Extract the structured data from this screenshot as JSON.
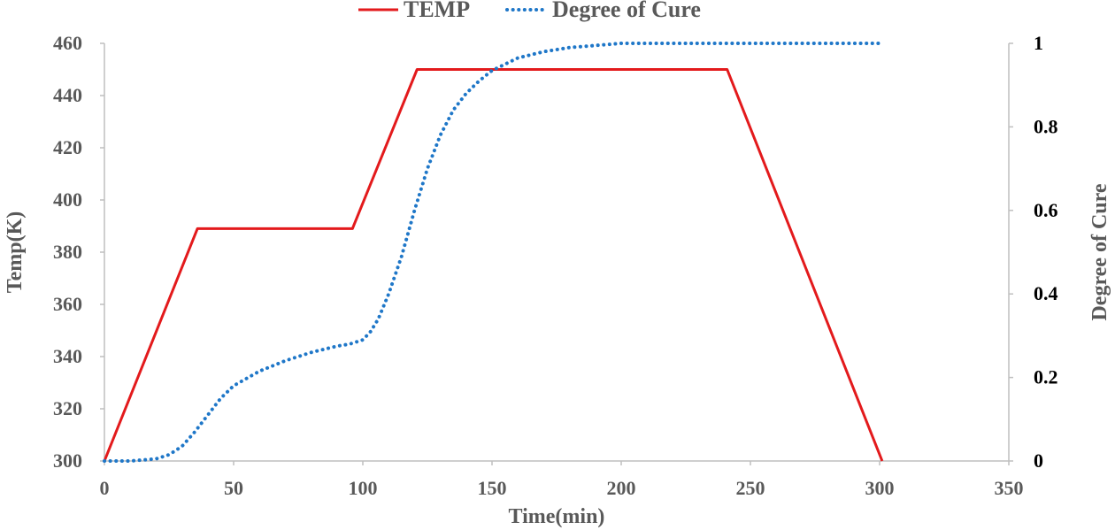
{
  "chart_data": {
    "type": "line",
    "title": "",
    "xlabel": "Time(min)",
    "ylabel": "Temp(K)",
    "y2label": "Degree of Cure",
    "xlim": [
      0,
      350
    ],
    "ylim": [
      300,
      460
    ],
    "y2lim": [
      0,
      1
    ],
    "x_ticks": [
      0,
      50,
      100,
      150,
      200,
      250,
      300,
      350
    ],
    "y_ticks": [
      300,
      320,
      340,
      360,
      380,
      400,
      420,
      440,
      460
    ],
    "y2_ticks": [
      0,
      0.2,
      0.4,
      0.6,
      0.8,
      1
    ],
    "legend_position": "top-center",
    "series": [
      {
        "name": "TEMP",
        "axis": "left",
        "color": "#e31a1c",
        "style": "solid",
        "x": [
          0,
          36,
          96,
          121,
          241,
          301
        ],
        "y": [
          300,
          389,
          389,
          450,
          450,
          300
        ]
      },
      {
        "name": "Degree of Cure",
        "axis": "right",
        "color": "#1f77c8",
        "style": "dotted",
        "x": [
          0,
          10,
          20,
          25,
          30,
          35,
          40,
          45,
          50,
          60,
          70,
          80,
          90,
          95,
          100,
          103,
          106,
          110,
          115,
          120,
          125,
          130,
          135,
          140,
          145,
          150,
          155,
          160,
          170,
          180,
          190,
          200,
          220,
          250,
          300
        ],
        "y": [
          0,
          0,
          0.005,
          0.015,
          0.035,
          0.07,
          0.11,
          0.15,
          0.18,
          0.215,
          0.24,
          0.26,
          0.275,
          0.28,
          0.29,
          0.31,
          0.34,
          0.4,
          0.49,
          0.6,
          0.7,
          0.78,
          0.84,
          0.88,
          0.91,
          0.935,
          0.95,
          0.965,
          0.98,
          0.99,
          0.995,
          1,
          1,
          1,
          1
        ]
      }
    ]
  }
}
